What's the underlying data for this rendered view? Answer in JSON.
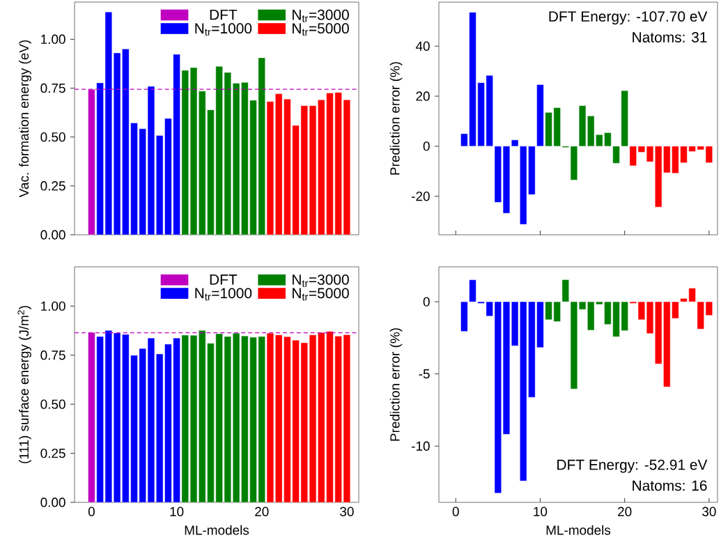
{
  "chart_data": [
    {
      "type": "bar",
      "ylabel": "Vac. formation energy (eV)",
      "xlim": [
        -2,
        31.4
      ],
      "xticks": [
        0,
        10,
        20,
        30
      ],
      "ylim": [
        0,
        1.19
      ],
      "yticks": [
        {
          "value": 0,
          "label": "0.00"
        },
        {
          "value": 0.25,
          "label": "0.25"
        },
        {
          "value": 0.5,
          "label": "0.50"
        },
        {
          "value": 0.75,
          "label": "0.75"
        },
        {
          "value": 1,
          "label": "1.00"
        }
      ],
      "tick_labels": "y",
      "legend": "top right",
      "ref_lines": [
        {
          "axis": "y",
          "value": 0.744,
          "color": "#c000c0",
          "line_style": "dashed"
        }
      ],
      "series": [
        {
          "name": "DFT",
          "color": "#c000c0",
          "x": [
            0
          ],
          "values": [
            0.744
          ]
        },
        {
          "name": "N$_{tr}$=1000",
          "color": "#0000ff",
          "x": [
            1,
            2,
            3,
            4,
            5,
            6,
            7,
            8,
            9,
            10
          ],
          "values": [
            0.777,
            1.139,
            0.93,
            0.95,
            0.572,
            0.542,
            0.759,
            0.508,
            0.595,
            0.923
          ]
        },
        {
          "name": "N$_{tr}$=3000",
          "color": "#008000",
          "x": [
            11,
            12,
            13,
            14,
            15,
            16,
            17,
            18,
            19,
            20
          ],
          "values": [
            0.841,
            0.855,
            0.735,
            0.639,
            0.861,
            0.83,
            0.775,
            0.779,
            0.688,
            0.905
          ]
        },
        {
          "name": "N$_{tr}$=5000",
          "color": "#ff0000",
          "x": [
            21,
            22,
            23,
            24,
            25,
            26,
            27,
            28,
            29,
            30
          ],
          "values": [
            0.681,
            0.721,
            0.694,
            0.559,
            0.66,
            0.66,
            0.69,
            0.725,
            0.728,
            0.69
          ]
        }
      ]
    },
    {
      "type": "bar",
      "ylabel": "Prediction error (%)",
      "xlim": [
        -2,
        31
      ],
      "xticks": [
        0,
        10,
        20,
        30
      ],
      "ylim": [
        -35.4,
        57.6
      ],
      "yticks": [
        -20,
        0,
        20,
        40
      ],
      "tick_labels": "y",
      "annotations": [
        "DFT Energy: -107.70 eV",
        "Natoms: 31"
      ],
      "series": [
        {
          "color": "#0000ff",
          "x": [
            1,
            2,
            3,
            4,
            5,
            6,
            7,
            8,
            9,
            10
          ],
          "values": [
            5.0,
            53.5,
            25.4,
            28.3,
            -22.4,
            -26.8,
            2.5,
            -31.2,
            -19.3,
            24.6
          ]
        },
        {
          "color": "#008000",
          "x": [
            11,
            12,
            13,
            14,
            15,
            16,
            17,
            18,
            19,
            20
          ],
          "values": [
            13.5,
            15.4,
            -0.5,
            -13.5,
            16.2,
            12.1,
            4.6,
            5.4,
            -6.8,
            22.2
          ]
        },
        {
          "color": "#ff0000",
          "x": [
            21,
            22,
            23,
            24,
            25,
            26,
            27,
            28,
            29,
            30
          ],
          "values": [
            -7.8,
            -2.4,
            -6.2,
            -24.3,
            -10.6,
            -10.8,
            -6.6,
            -2.1,
            -1.4,
            -6.6
          ]
        }
      ]
    },
    {
      "type": "bar",
      "ylabel": "(111) surface energy (J/m$^{2}$)",
      "xlabel": "ML-models",
      "xlim": [
        -2,
        31.4
      ],
      "xticks": [
        0,
        10,
        20,
        30
      ],
      "ylim": [
        0,
        1.2
      ],
      "yticks": [
        {
          "value": 0,
          "label": "0.00"
        },
        {
          "value": 0.25,
          "label": "0.25"
        },
        {
          "value": 0.5,
          "label": "0.50"
        },
        {
          "value": 0.75,
          "label": "0.75"
        },
        {
          "value": 1,
          "label": "1.00"
        }
      ],
      "legend": "top right",
      "ref_lines": [
        {
          "axis": "y",
          "value": 0.864,
          "color": "#c000c0",
          "line_style": "dashed"
        }
      ],
      "series": [
        {
          "name": "DFT",
          "color": "#c000c0",
          "x": [
            0
          ],
          "values": [
            0.865
          ]
        },
        {
          "name": "N$_{tr}$=1000",
          "color": "#0000ff",
          "x": [
            1,
            2,
            3,
            4,
            5,
            6,
            7,
            8,
            9,
            10
          ],
          "values": [
            0.845,
            0.876,
            0.863,
            0.856,
            0.749,
            0.784,
            0.837,
            0.756,
            0.806,
            0.837
          ]
        },
        {
          "name": "N$_{tr}$=3000",
          "color": "#008000",
          "x": [
            11,
            12,
            13,
            14,
            15,
            16,
            17,
            18,
            19,
            20
          ],
          "values": [
            0.852,
            0.851,
            0.876,
            0.81,
            0.859,
            0.845,
            0.862,
            0.848,
            0.841,
            0.845
          ]
        },
        {
          "name": "N$_{tr}$=5000",
          "color": "#ff0000",
          "x": [
            21,
            22,
            23,
            24,
            25,
            26,
            27,
            28,
            29,
            30
          ],
          "values": [
            0.862,
            0.853,
            0.844,
            0.826,
            0.813,
            0.853,
            0.865,
            0.871,
            0.847,
            0.854
          ]
        }
      ]
    },
    {
      "type": "bar",
      "ylabel": "Prediction error (%)",
      "xlabel": "ML-models",
      "xlim": [
        -2,
        31
      ],
      "xticks": [
        0,
        10,
        20,
        30
      ],
      "ylim": [
        -13.9,
        2.42
      ],
      "yticks": [
        -10,
        -5,
        0
      ],
      "annotations": [
        "DFT Energy: -52.91 eV",
        "Natoms: 16"
      ],
      "series": [
        {
          "color": "#0000ff",
          "x": [
            1,
            2,
            3,
            4,
            5,
            6,
            7,
            8,
            9,
            10
          ],
          "values": [
            -2.05,
            1.52,
            -0.11,
            -0.99,
            -13.26,
            -9.18,
            -3.05,
            -12.41,
            -6.62,
            -3.17
          ]
        },
        {
          "color": "#008000",
          "x": [
            11,
            12,
            13,
            14,
            15,
            16,
            17,
            18,
            19,
            20
          ],
          "values": [
            -1.24,
            -1.37,
            1.53,
            -6.04,
            -0.53,
            -1.97,
            -0.18,
            -1.57,
            -2.42,
            -2.0
          ]
        },
        {
          "color": "#ff0000",
          "x": [
            21,
            22,
            23,
            24,
            25,
            26,
            27,
            28,
            29,
            30
          ],
          "values": [
            -0.11,
            -1.24,
            -2.2,
            -4.3,
            -5.9,
            -1.15,
            0.23,
            0.94,
            -1.89,
            -0.94
          ]
        }
      ]
    }
  ]
}
